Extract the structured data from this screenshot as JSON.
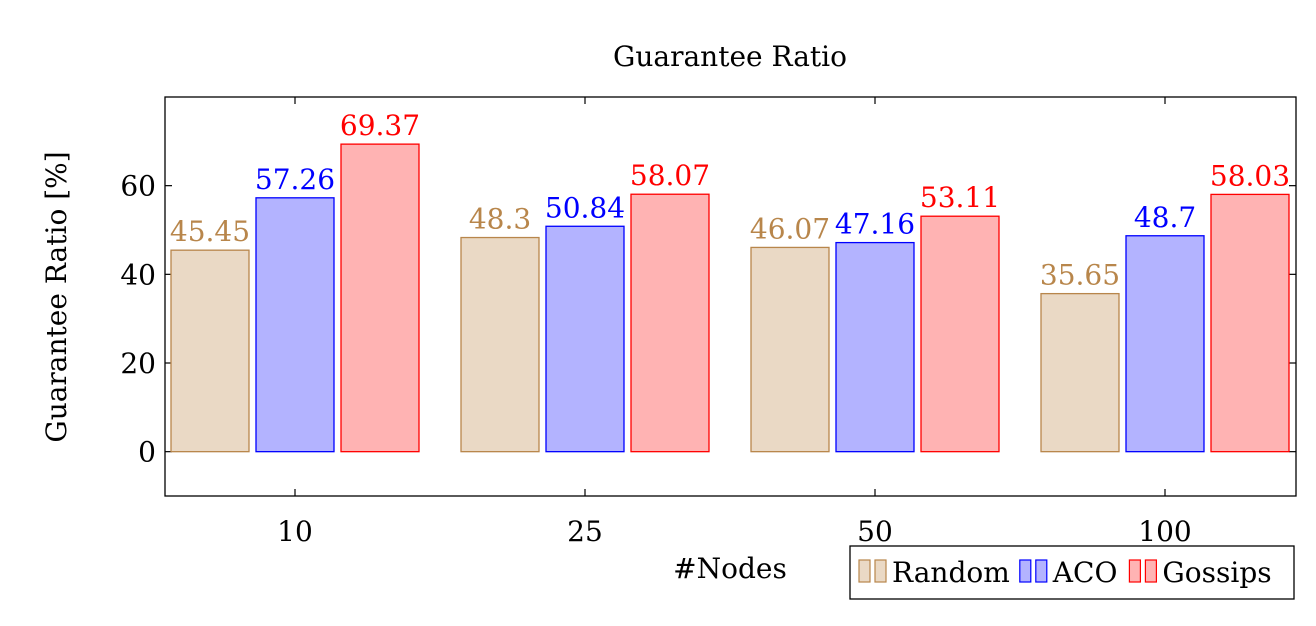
{
  "chart_data": {
    "type": "bar",
    "title": "Guarantee Ratio",
    "xlabel": "#Nodes",
    "ylabel": "Guarantee Ratio [%]",
    "categories": [
      "10",
      "25",
      "50",
      "100"
    ],
    "ylim": [
      -10,
      80
    ],
    "yticks": [
      0,
      20,
      40,
      60
    ],
    "grid": false,
    "legend_position": "bottom-right",
    "series": [
      {
        "name": "Random",
        "values": [
          45.45,
          48.3,
          46.07,
          35.65
        ],
        "labels": [
          "45.45",
          "48.3",
          "46.07",
          "35.65"
        ],
        "fill": "#ead9c5",
        "stroke": "#b8864b"
      },
      {
        "name": "ACO",
        "values": [
          57.26,
          50.84,
          47.16,
          48.7
        ],
        "labels": [
          "57.26",
          "50.84",
          "47.16",
          "48.7"
        ],
        "fill": "#b3b3ff",
        "stroke": "#0000ff"
      },
      {
        "name": "Gossips",
        "values": [
          69.37,
          58.07,
          53.11,
          58.03
        ],
        "labels": [
          "69.37",
          "58.07",
          "53.11",
          "58.03"
        ],
        "fill": "#ffb3b3",
        "stroke": "#ff0000"
      }
    ]
  }
}
